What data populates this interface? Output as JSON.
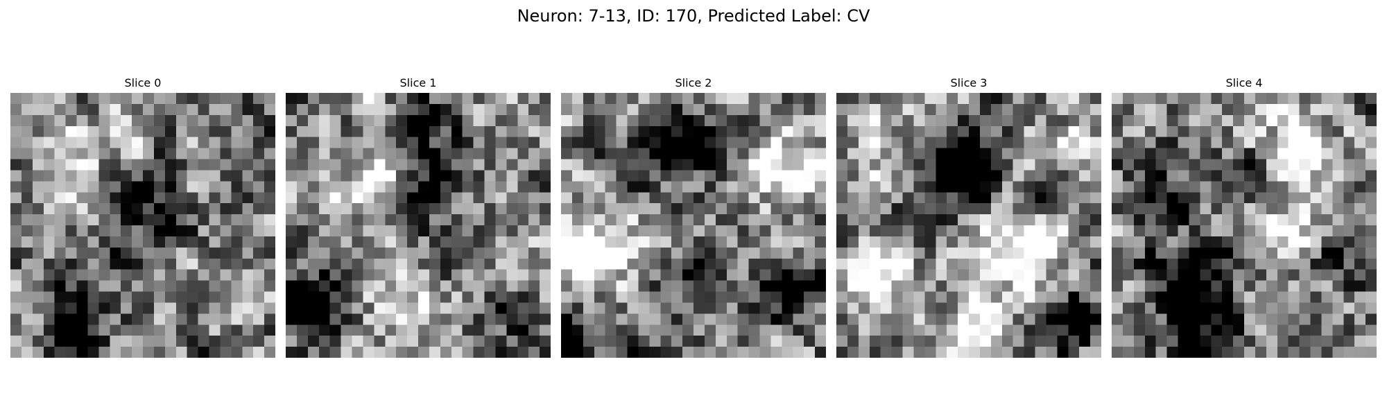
{
  "figure": {
    "title": "Neuron: 7-13, ID: 170, Predicted Label: CV",
    "colormap": "gray",
    "slices": [
      {
        "label": "Slice 0",
        "seed": 11,
        "blobs": [
          [
            0.55,
            0.45,
            -0.3
          ],
          [
            0.25,
            0.85,
            -0.35
          ],
          [
            0.8,
            0.75,
            0.3
          ],
          [
            0.3,
            0.2,
            0.2
          ]
        ]
      },
      {
        "label": "Slice 1",
        "seed": 23,
        "blobs": [
          [
            0.3,
            0.35,
            0.4
          ],
          [
            0.1,
            0.8,
            -0.4
          ],
          [
            0.55,
            0.35,
            -0.3
          ],
          [
            0.5,
            0.85,
            0.3
          ],
          [
            0.8,
            0.8,
            -0.2
          ],
          [
            0.55,
            0.1,
            -0.25
          ]
        ]
      },
      {
        "label": "Slice 2",
        "seed": 37,
        "blobs": [
          [
            0.45,
            0.2,
            -0.55
          ],
          [
            0.1,
            0.6,
            0.5
          ],
          [
            0.85,
            0.3,
            0.4
          ],
          [
            0.5,
            0.7,
            -0.4
          ],
          [
            0.05,
            0.95,
            -0.45
          ],
          [
            0.85,
            0.75,
            -0.3
          ],
          [
            0.35,
            0.55,
            0.15
          ]
        ]
      },
      {
        "label": "Slice 3",
        "seed": 51,
        "blobs": [
          [
            0.5,
            0.25,
            -0.55
          ],
          [
            0.15,
            0.7,
            0.5
          ],
          [
            0.7,
            0.6,
            0.5
          ],
          [
            0.55,
            0.9,
            0.45
          ],
          [
            0.15,
            0.15,
            0.3
          ],
          [
            0.9,
            0.85,
            -0.4
          ],
          [
            0.85,
            0.2,
            0.2
          ]
        ]
      },
      {
        "label": "Slice 4",
        "seed": 67,
        "blobs": [
          [
            0.7,
            0.2,
            0.55
          ],
          [
            0.3,
            0.7,
            -0.5
          ],
          [
            0.35,
            0.9,
            -0.45
          ],
          [
            0.65,
            0.45,
            0.35
          ],
          [
            0.15,
            0.4,
            -0.3
          ],
          [
            0.95,
            0.6,
            -0.35
          ],
          [
            0.6,
            0.35,
            -0.3
          ]
        ]
      }
    ]
  }
}
